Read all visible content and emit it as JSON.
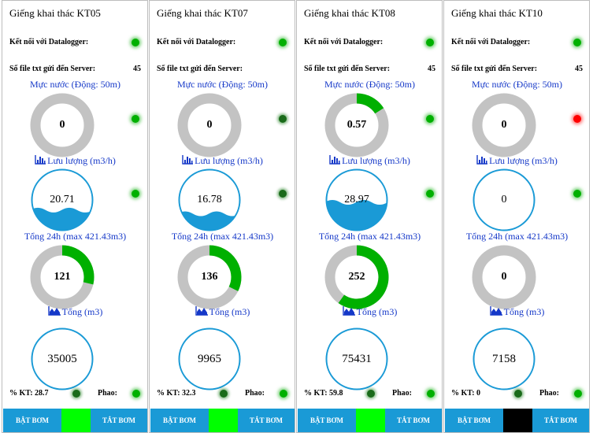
{
  "common": {
    "datalogger_label": "Kết nối với Datalogger:",
    "files_label": "Số file txt gửi đến Server:",
    "water_level_label": "Mực nước (Động: 50m)",
    "flow_label": "Lưu lượng (m3/h)",
    "total24h_label": "Tổng 24h (max 421.43m3)",
    "total_label": "Tổng (m3)",
    "kt_label": "% KT:",
    "float_label": "Phao:",
    "start_pump_label": "BẬT BƠM",
    "stop_pump_label": "TẮT BƠM"
  },
  "colors": {
    "accent_blue": "#1a9ad6",
    "gauge_green": "#00b000",
    "gauge_gray": "#c3c3c3",
    "label_blue": "#1538c8",
    "led_green": "#00b000",
    "led_red": "#ff0000",
    "pump_on": "#00ff00",
    "pump_off": "#000000"
  },
  "icons": {
    "flow": "bar-chart-icon",
    "total": "area-chart-icon"
  },
  "wells": [
    {
      "title": "Giếng khai thác KT05",
      "datalogger_status": "green",
      "files_count": "45",
      "water_level": {
        "value": "0",
        "fraction": 0,
        "status": "green"
      },
      "flow": {
        "value": "20.71",
        "fill_fraction": 0.33,
        "status": "green"
      },
      "total24h": {
        "value": "121",
        "fraction": 0.287
      },
      "total": {
        "value": "35005"
      },
      "kt_value": "28.7",
      "kt_status": "dark",
      "float_status": "green",
      "pump_state": "on"
    },
    {
      "title": "Giếng khai thác KT07",
      "datalogger_status": "green",
      "files_count": "",
      "water_level": {
        "value": "0",
        "fraction": 0,
        "status": "dark"
      },
      "flow": {
        "value": "16.78",
        "fill_fraction": 0.27,
        "status": "dark"
      },
      "total24h": {
        "value": "136",
        "fraction": 0.323
      },
      "total": {
        "value": "9965"
      },
      "kt_value": "32.3",
      "kt_status": "dark",
      "float_status": "green",
      "pump_state": "on"
    },
    {
      "title": "Giếng khai thác KT08",
      "datalogger_status": "green",
      "files_count": "45",
      "water_level": {
        "value": "0.57",
        "fraction": 0.16,
        "status": "green"
      },
      "flow": {
        "value": "28.97",
        "fill_fraction": 0.46,
        "status": "green"
      },
      "total24h": {
        "value": "252",
        "fraction": 0.598
      },
      "total": {
        "value": "75431"
      },
      "kt_value": "59.8",
      "kt_status": "dark",
      "float_status": "green",
      "pump_state": "on"
    },
    {
      "title": "Giếng khai thác KT10",
      "datalogger_status": "green",
      "files_count": "45",
      "water_level": {
        "value": "0",
        "fraction": 0,
        "status": "red"
      },
      "flow": {
        "value": "0",
        "fill_fraction": 0,
        "status": "green"
      },
      "total24h": {
        "value": "0",
        "fraction": 0
      },
      "total": {
        "value": "7158"
      },
      "kt_value": "0",
      "kt_status": "dark",
      "float_status": "green",
      "pump_state": "off"
    }
  ]
}
